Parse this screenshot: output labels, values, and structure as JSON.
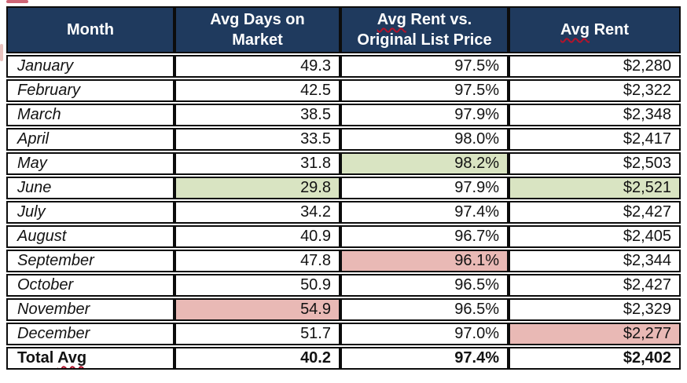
{
  "colors": {
    "header_bg": "#1f3a5e",
    "header_text": "#ffffff",
    "border": "#0c0c0c",
    "highlight_green": "#d9e4c2",
    "highlight_red": "#e9b9b5",
    "squiggle_red": "#b3132b",
    "cell_text": "#121212"
  },
  "headers": {
    "month": "Month",
    "days_line1": "Avg Days on",
    "days_line2": "Market",
    "avg_word": "Avg",
    "rent_vs_rest": " Rent vs.",
    "rent_vs_line2": "Original List Price",
    "avg_rent_rest": " Rent"
  },
  "chart_data": {
    "type": "table",
    "columns": [
      "Month",
      "Avg Days on Market",
      "Avg Rent vs. Original List Price",
      "Avg Rent"
    ],
    "rows": [
      {
        "month": "January",
        "avg_days_on_market": 49.3,
        "avg_rent_vs_original_list_price_pct": 97.5,
        "avg_rent_usd": 2280
      },
      {
        "month": "February",
        "avg_days_on_market": 42.5,
        "avg_rent_vs_original_list_price_pct": 97.5,
        "avg_rent_usd": 2322
      },
      {
        "month": "March",
        "avg_days_on_market": 38.5,
        "avg_rent_vs_original_list_price_pct": 97.9,
        "avg_rent_usd": 2348
      },
      {
        "month": "April",
        "avg_days_on_market": 33.5,
        "avg_rent_vs_original_list_price_pct": 98.0,
        "avg_rent_usd": 2417
      },
      {
        "month": "May",
        "avg_days_on_market": 31.8,
        "avg_rent_vs_original_list_price_pct": 98.2,
        "avg_rent_usd": 2503,
        "highlight": {
          "pct": "green"
        }
      },
      {
        "month": "June",
        "avg_days_on_market": 29.8,
        "avg_rent_vs_original_list_price_pct": 97.9,
        "avg_rent_usd": 2521,
        "highlight": {
          "days": "green",
          "rent": "green"
        }
      },
      {
        "month": "July",
        "avg_days_on_market": 34.2,
        "avg_rent_vs_original_list_price_pct": 97.4,
        "avg_rent_usd": 2427
      },
      {
        "month": "August",
        "avg_days_on_market": 40.9,
        "avg_rent_vs_original_list_price_pct": 96.7,
        "avg_rent_usd": 2405
      },
      {
        "month": "September",
        "avg_days_on_market": 47.8,
        "avg_rent_vs_original_list_price_pct": 96.1,
        "avg_rent_usd": 2344,
        "highlight": {
          "pct": "red"
        }
      },
      {
        "month": "October",
        "avg_days_on_market": 50.9,
        "avg_rent_vs_original_list_price_pct": 96.5,
        "avg_rent_usd": 2427
      },
      {
        "month": "November",
        "avg_days_on_market": 54.9,
        "avg_rent_vs_original_list_price_pct": 96.5,
        "avg_rent_usd": 2329,
        "highlight": {
          "days": "red"
        }
      },
      {
        "month": "December",
        "avg_days_on_market": 51.7,
        "avg_rent_vs_original_list_price_pct": 97.0,
        "avg_rent_usd": 2277,
        "highlight": {
          "rent": "red"
        }
      },
      {
        "month": "Total Avg",
        "avg_days_on_market": 40.2,
        "avg_rent_vs_original_list_price_pct": 97.4,
        "avg_rent_usd": 2402,
        "is_total": true
      }
    ]
  }
}
